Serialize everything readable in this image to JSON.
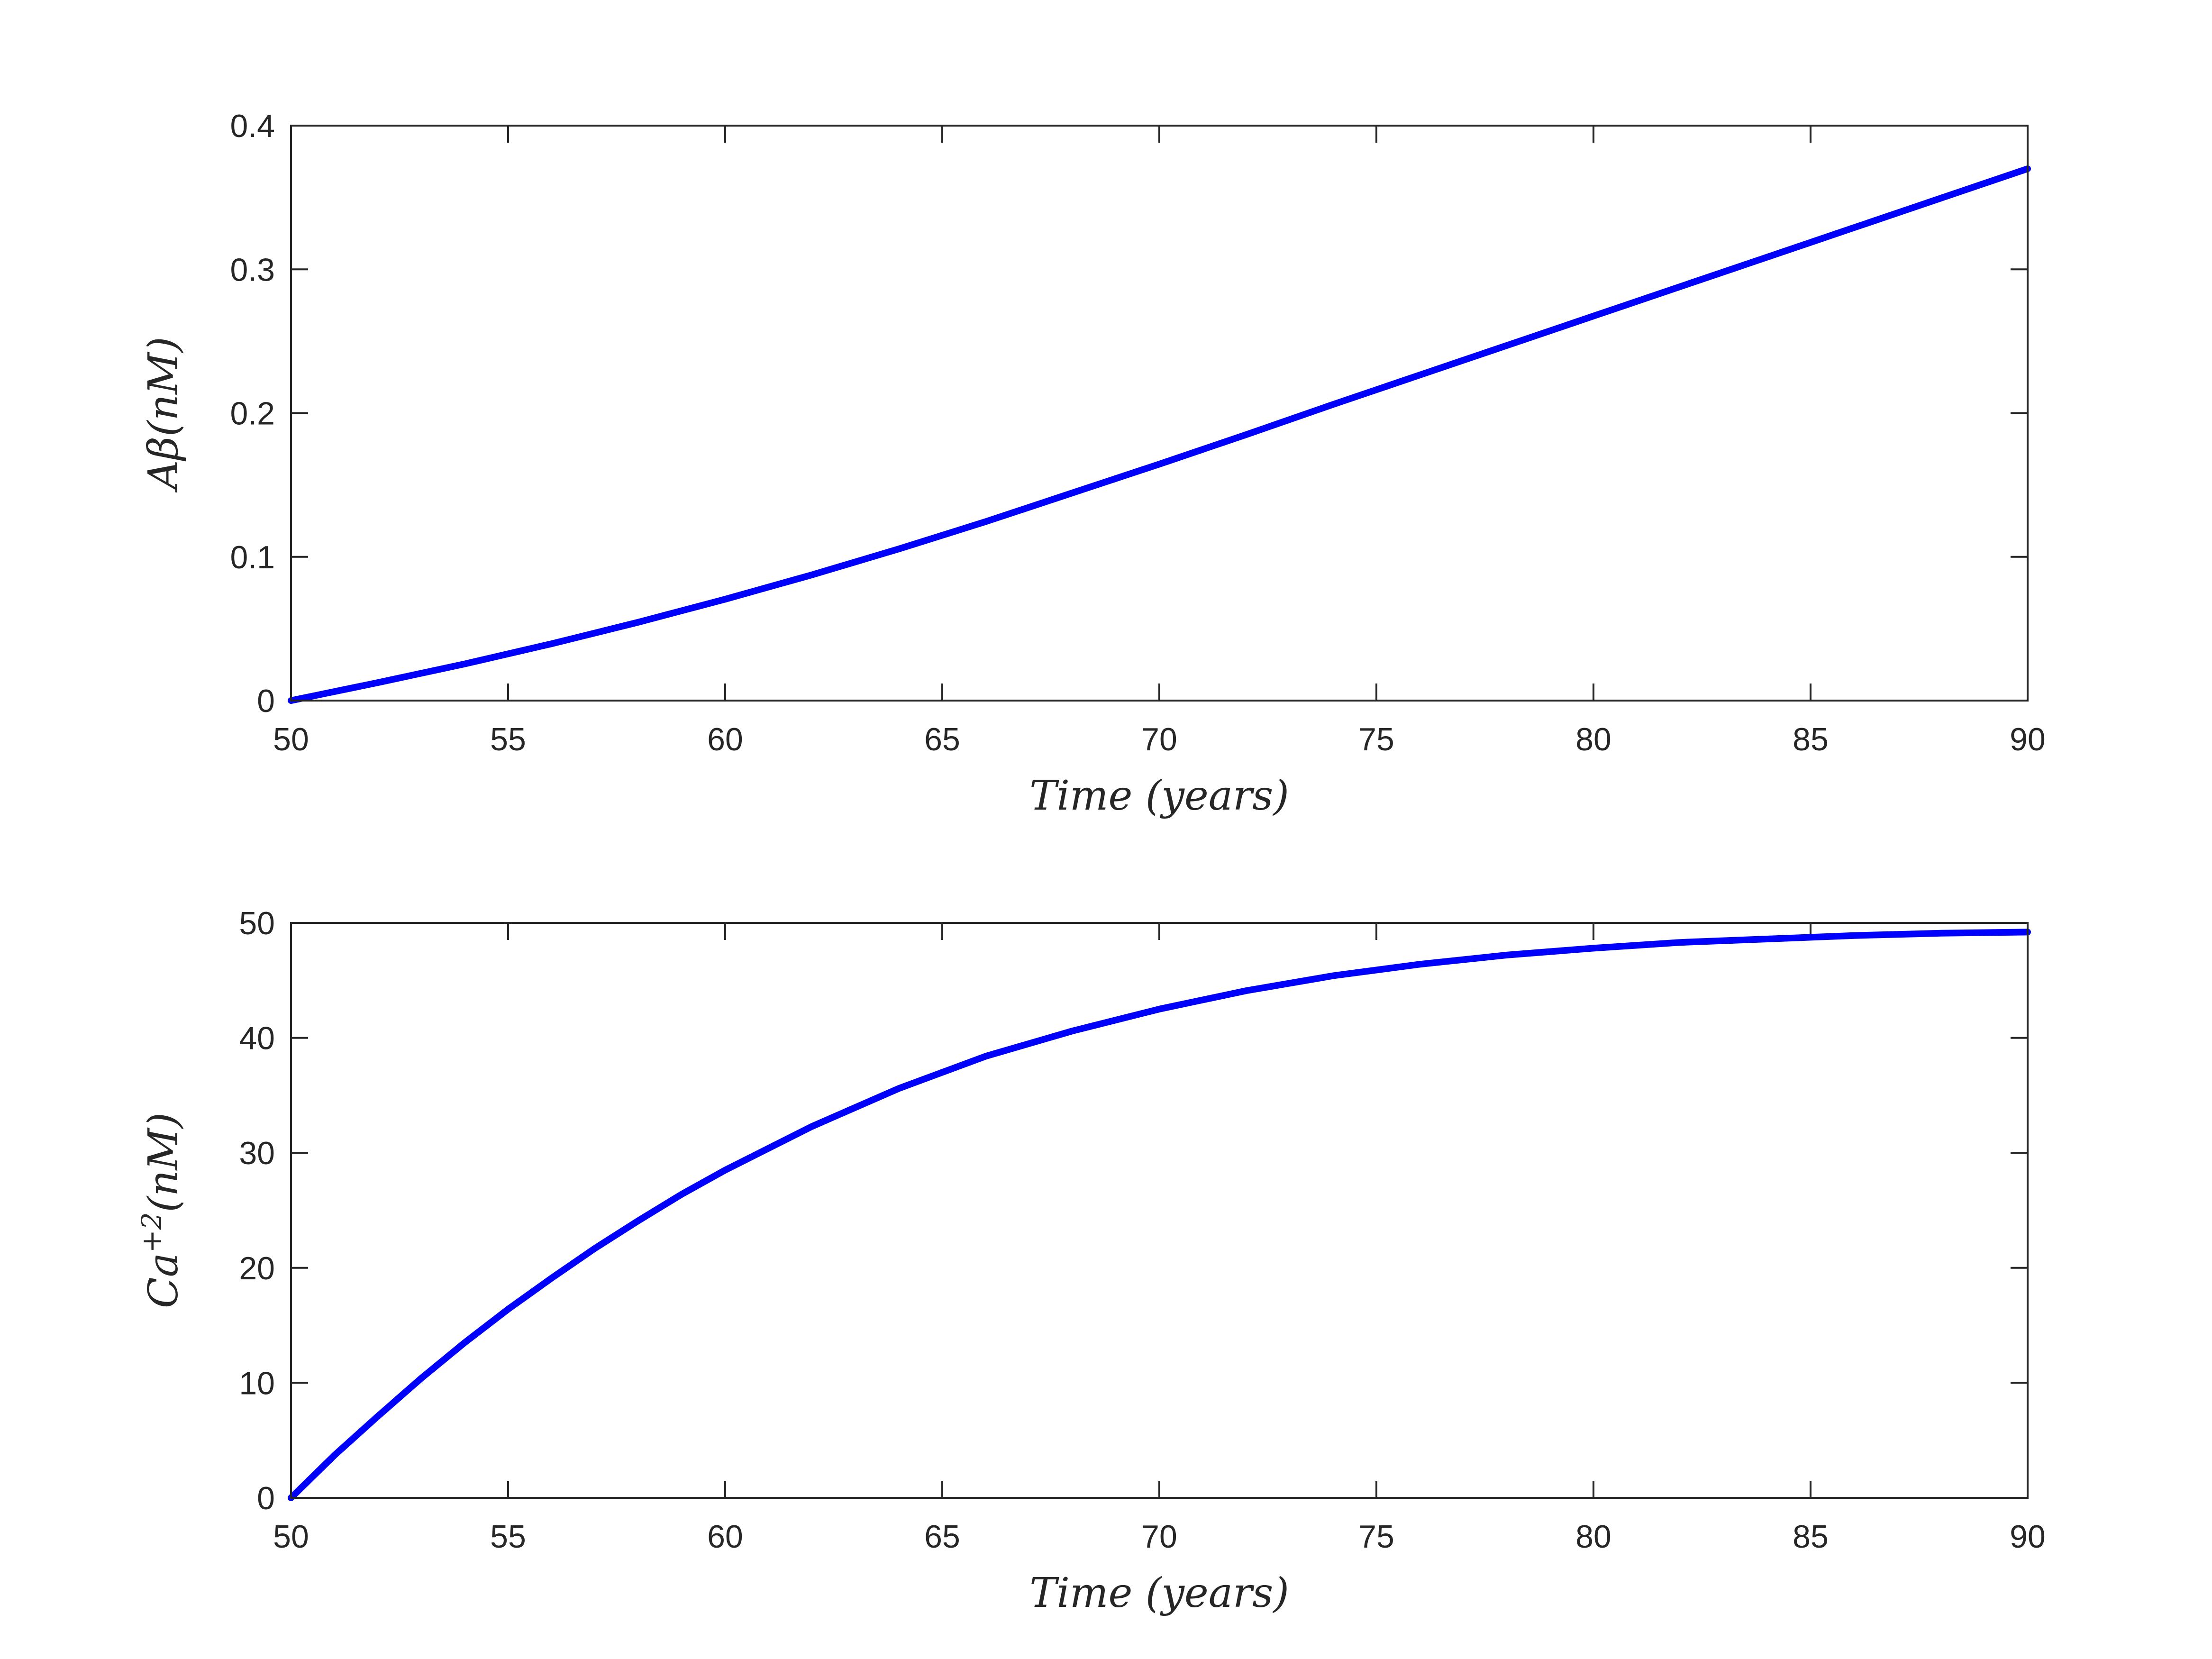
{
  "chart_data": [
    {
      "type": "line",
      "xlabel": "Time (years)",
      "ylabel_main": "Aβ",
      "ylabel_sup": "",
      "ylabel_unit": "(nM)",
      "xlim": [
        50,
        90
      ],
      "ylim": [
        0,
        0.4
      ],
      "xticks": [
        50,
        55,
        60,
        65,
        70,
        75,
        80,
        85,
        90
      ],
      "xtick_labels": [
        "50",
        "55",
        "60",
        "65",
        "70",
        "75",
        "80",
        "85",
        "90"
      ],
      "yticks": [
        0,
        0.1,
        0.2,
        0.3,
        0.4
      ],
      "ytick_labels": [
        "0",
        "0.1",
        "0.2",
        "0.3",
        "0.4"
      ],
      "grid": false,
      "series": [
        {
          "color": "#0000ff",
          "x": [
            50,
            52,
            54,
            56,
            58,
            60,
            62,
            64,
            66,
            68,
            70,
            72,
            74,
            76,
            78,
            80,
            82,
            84,
            86,
            88,
            90
          ],
          "y": [
            0,
            0.0125,
            0.0255,
            0.0395,
            0.0545,
            0.0705,
            0.0875,
            0.1055,
            0.1245,
            0.1445,
            0.1645,
            0.185,
            0.206,
            0.2265,
            0.247,
            0.2675,
            0.288,
            0.3085,
            0.329,
            0.3495,
            0.37
          ]
        }
      ]
    },
    {
      "type": "line",
      "xlabel": "Time (years)",
      "ylabel_main": "Ca",
      "ylabel_sup": "+2",
      "ylabel_unit": "(nM)",
      "xlim": [
        50,
        90
      ],
      "ylim": [
        0,
        50
      ],
      "xticks": [
        50,
        55,
        60,
        65,
        70,
        75,
        80,
        85,
        90
      ],
      "xtick_labels": [
        "50",
        "55",
        "60",
        "65",
        "70",
        "75",
        "80",
        "85",
        "90"
      ],
      "yticks": [
        0,
        10,
        20,
        30,
        40,
        50
      ],
      "ytick_labels": [
        "0",
        "10",
        "20",
        "30",
        "40",
        "50"
      ],
      "grid": false,
      "series": [
        {
          "color": "#0000ff",
          "x": [
            50,
            51,
            52,
            53,
            54,
            55,
            56,
            57,
            58,
            59,
            60,
            62,
            64,
            66,
            68,
            70,
            72,
            74,
            76,
            78,
            80,
            82,
            84,
            86,
            88,
            90
          ],
          "y": [
            0,
            3.7,
            7.1,
            10.4,
            13.5,
            16.4,
            19.1,
            21.7,
            24.1,
            26.4,
            28.5,
            32.3,
            35.6,
            38.4,
            40.6,
            42.5,
            44.1,
            45.4,
            46.4,
            47.2,
            47.8,
            48.3,
            48.6,
            48.9,
            49.1,
            49.2
          ]
        }
      ]
    }
  ]
}
